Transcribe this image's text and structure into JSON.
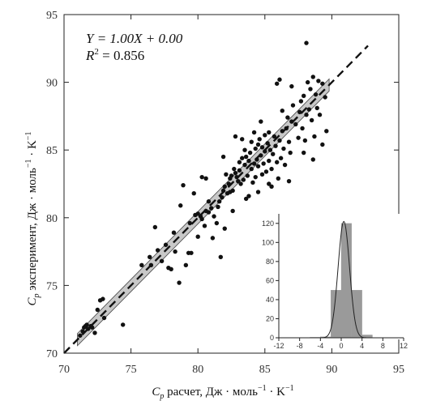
{
  "chart_data": {
    "type": "scatter",
    "main": {
      "xlim": [
        70,
        95
      ],
      "ylim": [
        70,
        95
      ],
      "xticks": [
        70,
        75,
        80,
        85,
        90,
        95
      ],
      "yticks": [
        70,
        75,
        80,
        85,
        90,
        95
      ],
      "xlabel_pre": "C",
      "xlabel_sub": "p",
      "xlabel_post": " расчет, Дж · моль",
      "xlabel_sup1": "−1",
      "xlabel_mid": " · K",
      "xlabel_sup2": "−1",
      "ylabel_pre": "C",
      "ylabel_sub": "p",
      "ylabel_post": " эксперимент, Дж · моль",
      "ylabel_sup1": "−1",
      "ylabel_mid": " · K",
      "ylabel_sup2": "−1",
      "equation": "Y = 1.00X + 0.00",
      "r2_prefix": "R",
      "r2_sup": "2",
      "r2_value": " = 0.856",
      "fit": {
        "slope": 1.0,
        "intercept": 0.0
      },
      "confidence_band_halfwidth": 0.45,
      "points": [
        [
          71.2,
          71.3
        ],
        [
          71.4,
          71.6
        ],
        [
          71.5,
          71.9
        ],
        [
          71.6,
          72.0
        ],
        [
          71.7,
          72.1
        ],
        [
          71.8,
          71.8
        ],
        [
          72.0,
          72.0
        ],
        [
          72.1,
          71.9
        ],
        [
          72.3,
          71.5
        ],
        [
          72.5,
          73.2
        ],
        [
          72.7,
          73.9
        ],
        [
          72.9,
          74.0
        ],
        [
          73.0,
          72.6
        ],
        [
          74.4,
          72.1
        ],
        [
          75.8,
          76.5
        ],
        [
          76.4,
          77.1
        ],
        [
          76.8,
          79.3
        ],
        [
          77.3,
          76.8
        ],
        [
          77.6,
          78.0
        ],
        [
          77.8,
          76.3
        ],
        [
          78.0,
          76.2
        ],
        [
          78.3,
          77.5
        ],
        [
          78.6,
          75.2
        ],
        [
          78.7,
          80.9
        ],
        [
          79.1,
          76.5
        ],
        [
          79.3,
          77.4
        ],
        [
          79.5,
          77.4
        ],
        [
          79.8,
          80.2
        ],
        [
          80.0,
          80.3
        ],
        [
          80.2,
          80.1
        ],
        [
          80.3,
          79.9
        ],
        [
          80.5,
          79.4
        ],
        [
          80.6,
          80.5
        ],
        [
          80.8,
          80.4
        ],
        [
          81.0,
          80.7
        ],
        [
          81.2,
          80.1
        ],
        [
          81.4,
          79.6
        ],
        [
          81.5,
          80.8
        ],
        [
          81.6,
          81.2
        ],
        [
          81.7,
          77.1
        ],
        [
          81.8,
          81.5
        ],
        [
          81.9,
          82.0
        ],
        [
          82.0,
          82.3
        ],
        [
          82.1,
          83.2
        ],
        [
          82.2,
          81.8
        ],
        [
          82.3,
          82.5
        ],
        [
          82.4,
          82.9
        ],
        [
          82.5,
          83.1
        ],
        [
          82.6,
          82.0
        ],
        [
          82.6,
          80.5
        ],
        [
          82.7,
          83.6
        ],
        [
          82.8,
          83.3
        ],
        [
          82.9,
          83.0
        ],
        [
          83.0,
          82.7
        ],
        [
          83.1,
          84.1
        ],
        [
          83.1,
          83.5
        ],
        [
          83.2,
          82.5
        ],
        [
          83.3,
          84.4
        ],
        [
          83.4,
          82.8
        ],
        [
          83.5,
          83.9
        ],
        [
          83.5,
          85.0
        ],
        [
          83.6,
          84.5
        ],
        [
          83.7,
          83.1
        ],
        [
          83.8,
          84.2
        ],
        [
          83.9,
          84.8
        ],
        [
          84.0,
          83.6
        ],
        [
          84.0,
          85.6
        ],
        [
          84.1,
          82.6
        ],
        [
          84.2,
          84.0
        ],
        [
          84.3,
          85.1
        ],
        [
          84.3,
          83.0
        ],
        [
          84.4,
          84.3
        ],
        [
          84.5,
          83.8
        ],
        [
          84.5,
          85.4
        ],
        [
          84.6,
          85.8
        ],
        [
          84.7,
          84.6
        ],
        [
          84.8,
          85.2
        ],
        [
          84.8,
          83.2
        ],
        [
          84.9,
          84.0
        ],
        [
          85.0,
          84.9
        ],
        [
          85.0,
          86.1
        ],
        [
          85.1,
          83.4
        ],
        [
          85.2,
          85.5
        ],
        [
          85.3,
          84.2
        ],
        [
          85.3,
          86.3
        ],
        [
          85.4,
          85.0
        ],
        [
          85.5,
          83.6
        ],
        [
          85.6,
          84.7
        ],
        [
          85.7,
          86.0
        ],
        [
          85.8,
          85.3
        ],
        [
          85.9,
          84.1
        ],
        [
          86.0,
          82.9
        ],
        [
          86.1,
          85.7
        ],
        [
          86.2,
          84.4
        ],
        [
          86.3,
          86.4
        ],
        [
          86.4,
          85.1
        ],
        [
          86.5,
          83.9
        ],
        [
          86.6,
          86.6
        ],
        [
          86.7,
          87.4
        ],
        [
          86.8,
          85.6
        ],
        [
          86.9,
          84.8
        ],
        [
          87.0,
          87.1
        ],
        [
          87.1,
          88.3
        ],
        [
          87.3,
          86.9
        ],
        [
          87.5,
          85.9
        ],
        [
          87.6,
          87.8
        ],
        [
          87.7,
          88.6
        ],
        [
          87.8,
          86.6
        ],
        [
          87.9,
          89.0
        ],
        [
          88.0,
          85.7
        ],
        [
          88.1,
          87.6
        ],
        [
          88.2,
          90.0
        ],
        [
          88.3,
          88.0
        ],
        [
          88.4,
          89.5
        ],
        [
          88.5,
          87.2
        ],
        [
          88.6,
          90.4
        ],
        [
          88.7,
          86.0
        ],
        [
          88.8,
          89.1
        ],
        [
          88.9,
          88.1
        ],
        [
          89.0,
          90.1
        ],
        [
          89.1,
          87.6
        ],
        [
          89.3,
          89.9
        ],
        [
          89.5,
          88.9
        ],
        [
          88.1,
          92.9
        ],
        [
          87.0,
          89.7
        ],
        [
          86.1,
          90.2
        ],
        [
          85.9,
          89.9
        ],
        [
          84.2,
          86.3
        ],
        [
          83.3,
          85.8
        ],
        [
          82.8,
          86.0
        ],
        [
          81.9,
          84.5
        ],
        [
          80.6,
          82.9
        ],
        [
          80.3,
          83.0
        ],
        [
          79.7,
          81.8
        ],
        [
          78.9,
          82.4
        ],
        [
          80.8,
          81.2
        ],
        [
          82.4,
          81.9
        ],
        [
          83.8,
          81.6
        ],
        [
          84.5,
          81.9
        ],
        [
          85.5,
          82.3
        ],
        [
          86.8,
          82.7
        ],
        [
          87.9,
          84.8
        ],
        [
          88.6,
          84.3
        ],
        [
          89.3,
          85.4
        ],
        [
          89.6,
          86.4
        ],
        [
          86.3,
          87.9
        ],
        [
          84.7,
          87.1
        ],
        [
          85.3,
          82.5
        ],
        [
          83.6,
          81.4
        ],
        [
          81.1,
          78.5
        ],
        [
          82.0,
          79.2
        ],
        [
          80.0,
          78.6
        ],
        [
          79.4,
          79.6
        ],
        [
          78.2,
          78.9
        ],
        [
          76.5,
          76.5
        ],
        [
          77.0,
          77.6
        ]
      ]
    },
    "inset": {
      "type": "histogram",
      "xlim": [
        -12,
        12
      ],
      "ylim": [
        0,
        130
      ],
      "xticks": [
        -12,
        -8,
        -4,
        0,
        4,
        8,
        12
      ],
      "xtick_labels": [
        "-12",
        "-8",
        "-4",
        "0",
        "4",
        "8",
        "12"
      ],
      "yticks": [
        0,
        20,
        40,
        60,
        80,
        100,
        120
      ],
      "ytick_labels": [
        "0",
        "20",
        "40",
        "60",
        "80",
        "100",
        "120"
      ],
      "bins": [
        {
          "x0": -6,
          "x1": -4,
          "count": 0.5
        },
        {
          "x0": -4,
          "x1": -2,
          "count": 1
        },
        {
          "x0": -2,
          "x1": 0,
          "count": 50
        },
        {
          "x0": 0,
          "x1": 2,
          "count": 120
        },
        {
          "x0": 2,
          "x1": 4,
          "count": 50
        },
        {
          "x0": 4,
          "x1": 6,
          "count": 3
        }
      ],
      "curve": {
        "mean": 0.5,
        "sigma": 1.1,
        "peak": 122
      }
    }
  }
}
